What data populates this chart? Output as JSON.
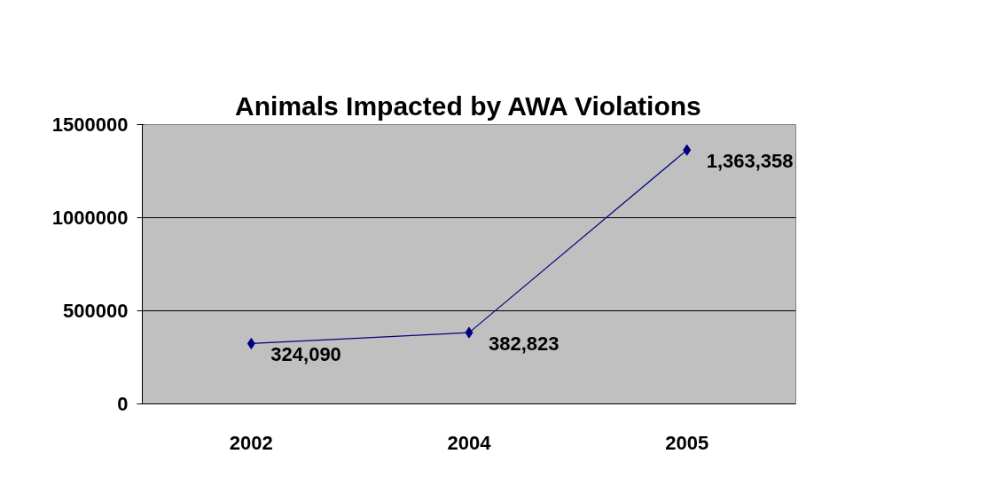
{
  "chart_data": {
    "type": "line",
    "title": "Animals Impacted by AWA Violations",
    "categories": [
      "2002",
      "2004",
      "2005"
    ],
    "series": [
      {
        "color": "#000080",
        "values": [
          324090,
          382823,
          1363358
        ],
        "value_labels": [
          "324,090",
          "382,823",
          "1,363,358"
        ]
      }
    ],
    "ylim": [
      0,
      1500000
    ],
    "yticks": [
      0,
      500000,
      1000000,
      1500000
    ],
    "grid": "y",
    "marker": "diamond",
    "line_style": "solid"
  }
}
